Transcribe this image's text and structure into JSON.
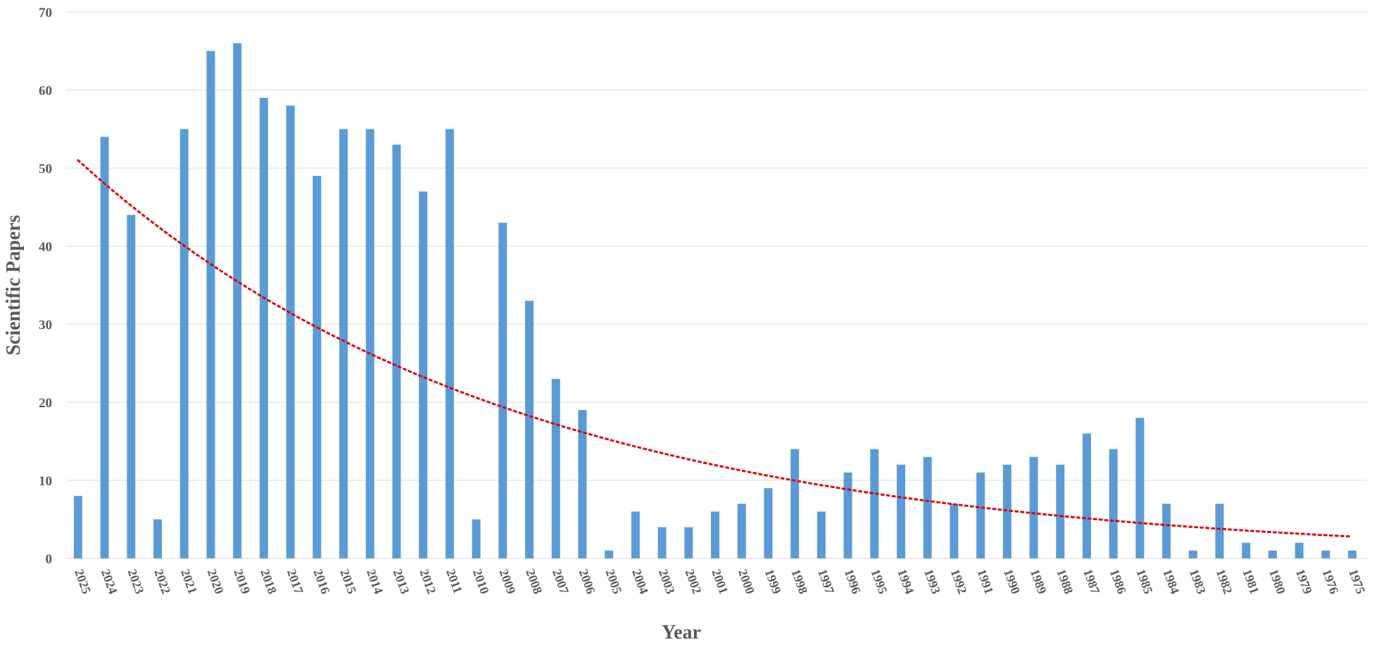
{
  "chart_data": {
    "type": "bar",
    "title": "",
    "xlabel": "Year",
    "ylabel": "Scientific Papers",
    "ylim": [
      0,
      70
    ],
    "yticks": [
      0,
      10,
      20,
      30,
      40,
      50,
      60,
      70
    ],
    "grid": true,
    "legend": "none",
    "colors": {
      "bar": "#5b9bd5",
      "trend": "#e00000",
      "grid": "#d9d9d9",
      "text": "#595959"
    },
    "categories": [
      "2025",
      "2024",
      "2023",
      "2022",
      "2021",
      "2020",
      "2019",
      "2018",
      "2017",
      "2016",
      "2015",
      "2014",
      "2013",
      "2012",
      "2011",
      "2010",
      "2009",
      "2008",
      "2007",
      "2006",
      "2005",
      "2004",
      "2003",
      "2002",
      "2001",
      "2000",
      "1999",
      "1998",
      "1997",
      "1996",
      "1995",
      "1994",
      "1993",
      "1992",
      "1991",
      "1990",
      "1989",
      "1988",
      "1987",
      "1986",
      "1985",
      "1984",
      "1983",
      "1982",
      "1981",
      "1980",
      "1979",
      "1976",
      "1975"
    ],
    "values": [
      8,
      54,
      44,
      5,
      55,
      65,
      66,
      59,
      58,
      49,
      55,
      55,
      53,
      47,
      55,
      5,
      43,
      33,
      23,
      19,
      1,
      6,
      4,
      4,
      6,
      7,
      9,
      14,
      6,
      11,
      14,
      12,
      13,
      7,
      11,
      12,
      13,
      12,
      16,
      14,
      18,
      7,
      1,
      7,
      2,
      1,
      2,
      1,
      1
    ],
    "trendline": {
      "type": "exponential",
      "start": 51,
      "end": 2.8,
      "style": "dotted"
    }
  }
}
